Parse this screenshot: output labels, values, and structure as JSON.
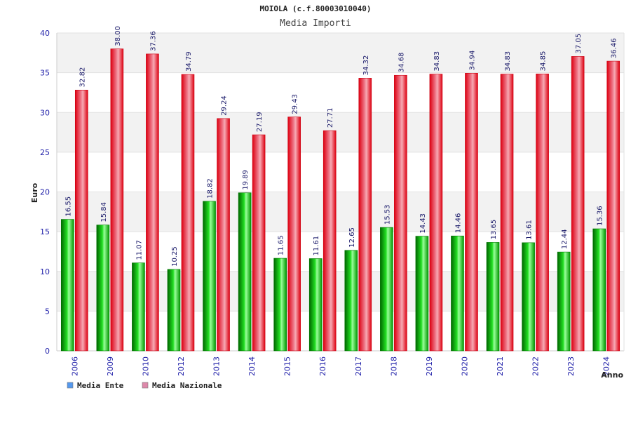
{
  "chart_data": {
    "type": "bar",
    "title": "MOIOLA (c.f.80003010040)",
    "subtitle": "Media Importi",
    "xlabel": "Anno",
    "ylabel": "Euro",
    "ylim": [
      0,
      40
    ],
    "yticks": [
      0,
      5,
      10,
      15,
      20,
      25,
      30,
      35,
      40
    ],
    "grid": true,
    "legend_position": "bottom-left",
    "categories": [
      "2006",
      "2009",
      "2010",
      "2012",
      "2013",
      "2014",
      "2015",
      "2016",
      "2017",
      "2018",
      "2019",
      "2020",
      "2021",
      "2022",
      "2023",
      "2024"
    ],
    "series": [
      {
        "name": "Media Ente",
        "color": "#00cc00",
        "legend_color": "#5599ee",
        "values": [
          16.55,
          15.84,
          11.07,
          10.25,
          18.82,
          19.89,
          11.65,
          11.61,
          12.65,
          15.53,
          14.43,
          14.46,
          13.65,
          13.61,
          12.44,
          15.36
        ],
        "labels": [
          "16.55",
          "15.84",
          "11.07",
          "10.25",
          "18.82",
          "19.89",
          "11.65",
          "11.61",
          "12.65",
          "15.53",
          "14.43",
          "14.46",
          "13.65",
          "13.61",
          "12.44",
          "15.36"
        ]
      },
      {
        "name": "Media Nazionale",
        "color": "#ee1122",
        "legend_color": "#dd88aa",
        "values": [
          32.82,
          38.0,
          37.36,
          34.79,
          29.24,
          27.19,
          29.43,
          27.71,
          34.32,
          34.68,
          34.83,
          34.94,
          34.83,
          34.85,
          37.05,
          36.46
        ],
        "labels": [
          "32.82",
          "38.00",
          "37.36",
          "34.79",
          "29.24",
          "27.19",
          "29.43",
          "27.71",
          "34.32",
          "34.68",
          "34.83",
          "34.94",
          "34.83",
          "34.85",
          "37.05",
          "36.46"
        ]
      }
    ]
  }
}
